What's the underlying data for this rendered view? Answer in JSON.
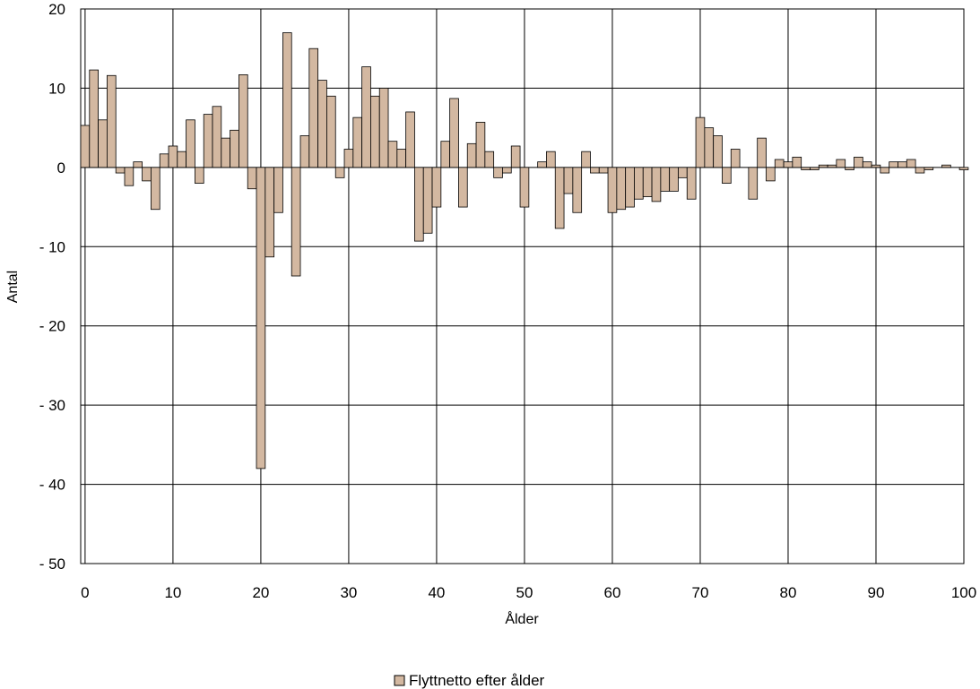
{
  "chart_data": {
    "type": "bar",
    "xlabel": "Ålder",
    "ylabel": "Antal",
    "ylim": [
      -50,
      20
    ],
    "xlim": [
      0,
      100
    ],
    "x_ticks": [
      "0",
      "10",
      "20",
      "30",
      "40",
      "50",
      "60",
      "70",
      "80",
      "90",
      "100"
    ],
    "y_ticks": [
      "20",
      "10",
      "0",
      "- 10",
      "- 20",
      "- 30",
      "- 40",
      "- 50"
    ],
    "grid": true,
    "legend_position": "bottom",
    "series": [
      {
        "name": "Flyttnetto efter ålder",
        "color": "#d3b8a1",
        "x": [
          0,
          1,
          2,
          3,
          4,
          5,
          6,
          7,
          8,
          9,
          10,
          11,
          12,
          13,
          14,
          15,
          16,
          17,
          18,
          19,
          20,
          21,
          22,
          23,
          24,
          25,
          26,
          27,
          28,
          29,
          30,
          31,
          32,
          33,
          34,
          35,
          36,
          37,
          38,
          39,
          40,
          41,
          42,
          43,
          44,
          45,
          46,
          47,
          48,
          49,
          50,
          51,
          52,
          53,
          54,
          55,
          56,
          57,
          58,
          59,
          60,
          61,
          62,
          63,
          64,
          65,
          66,
          67,
          68,
          69,
          70,
          71,
          72,
          73,
          74,
          75,
          76,
          77,
          78,
          79,
          80,
          81,
          82,
          83,
          84,
          85,
          86,
          87,
          88,
          89,
          90,
          91,
          92,
          93,
          94,
          95,
          96,
          97,
          98,
          99,
          100
        ],
        "values": [
          5.3,
          12.3,
          6,
          11.6,
          -0.7,
          -2.3,
          0.7,
          -1.7,
          -5.3,
          1.7,
          2.7,
          2,
          6,
          -2,
          6.7,
          7.7,
          3.7,
          4.7,
          11.7,
          -2.7,
          -38,
          -11.3,
          -5.7,
          17,
          -13.7,
          4,
          15,
          11,
          9,
          -1.3,
          2.3,
          6.3,
          12.7,
          9,
          10,
          3.3,
          2.3,
          7,
          -9.3,
          -8.3,
          -5,
          3.3,
          8.7,
          -5,
          3,
          5.7,
          2,
          -1.3,
          -0.7,
          2.7,
          -5,
          0,
          0.7,
          2,
          -7.7,
          -3.3,
          -5.7,
          2,
          -0.7,
          -0.7,
          -5.7,
          -5.3,
          -5,
          -4,
          -3.7,
          -4.3,
          -3,
          -3,
          -1.3,
          -4,
          6.3,
          5,
          4,
          -2,
          2.3,
          0,
          -4,
          3.7,
          -1.7,
          1,
          0.7,
          1.3,
          -0.3,
          -0.3,
          0.3,
          0.3,
          1,
          -0.3,
          1.3,
          0.7,
          0.3,
          -0.7,
          0.7,
          0.7,
          1,
          -0.7,
          -0.3,
          0,
          0.3,
          0,
          -0.3
        ]
      }
    ]
  }
}
